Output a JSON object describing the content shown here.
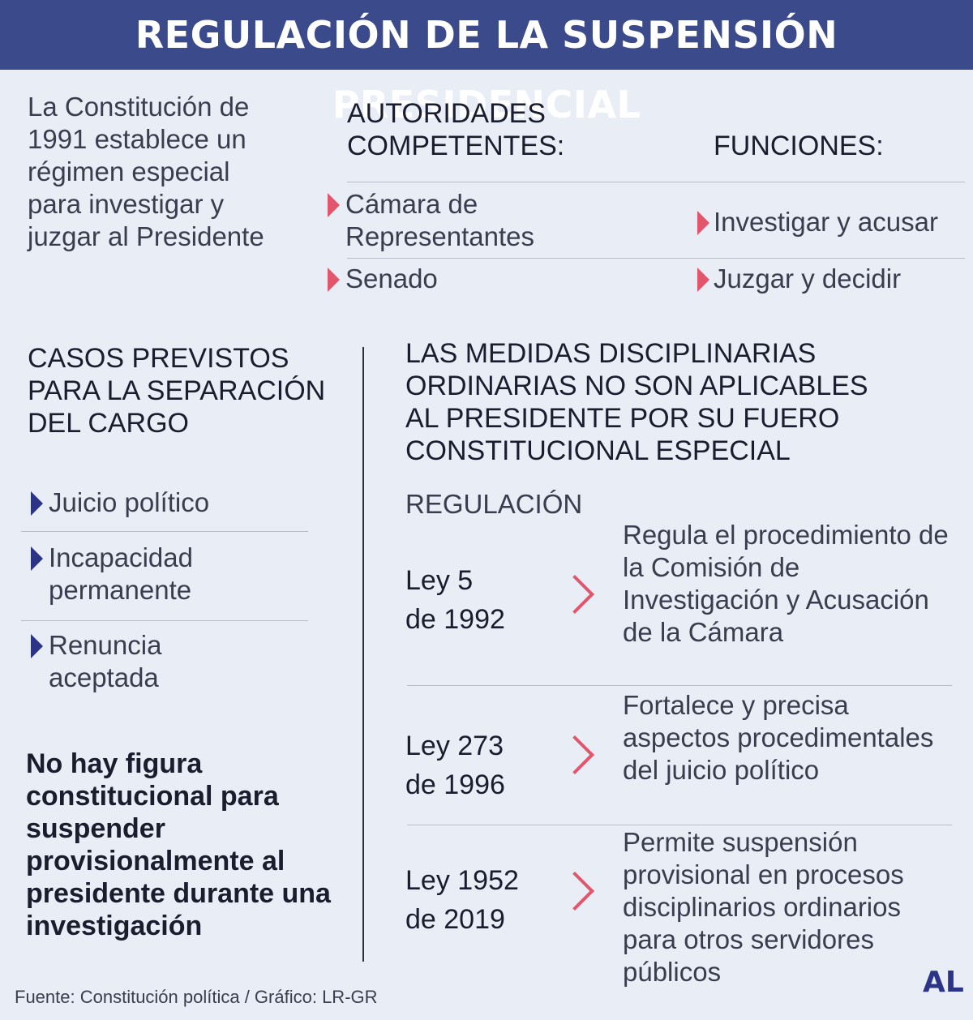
{
  "title": "REGULACIÓN DE LA SUSPENSIÓN PRESIDENCIAL",
  "intro": "La Constitución de 1991 establece un régimen especial para investigar y juzgar al Presidente",
  "authorities": {
    "heading": "AUTORIDADES COMPETENTES:",
    "functions_heading": "FUNCIONES:",
    "rows": [
      {
        "authority": "Cámara de Representantes",
        "function": "Investigar y acusar"
      },
      {
        "authority": "Senado",
        "function": "Juzgar y decidir"
      }
    ]
  },
  "cases": {
    "heading": "CASOS PREVISTOS PARA LA SEPARACIÓN DEL CARGO",
    "items": [
      "Juicio político",
      "Incapacidad permanente",
      "Renuncia aceptada"
    ]
  },
  "note": "No hay figura constitucional para suspender provisionalmente al presidente durante una investigación",
  "measures": {
    "heading": "LAS MEDIDAS DISCIPLINARIAS ORDINARIAS NO SON APLICABLES AL PRESIDENTE POR SU FUERO CONSTITUCIONAL ESPECIAL",
    "subheading": "REGULACIÓN",
    "laws": [
      {
        "law_line1": "Ley 5",
        "law_line2": "de 1992",
        "desc": "Regula el procedimiento de la Comisión de Investigación y Acusación de la Cámara"
      },
      {
        "law_line1": "Ley 273",
        "law_line2": "de 1996",
        "desc": "Fortalece y precisa aspectos procedimentales del juicio político"
      },
      {
        "law_line1": "Ley 1952",
        "law_line2": "de 2019",
        "desc": "Permite suspensión provisional en procesos disciplinarios ordinarios para otros servidores públicos"
      }
    ]
  },
  "footer": "Fuente: Constitución política / Gráfico: LR-GR",
  "logo": "AL"
}
